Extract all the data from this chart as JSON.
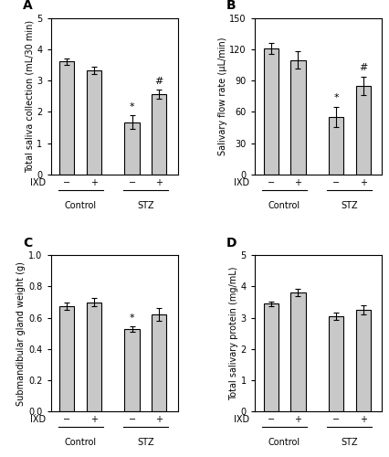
{
  "panels": [
    {
      "label": "A",
      "ylabel": "Total saliva collection (mL/30 min)",
      "ylim": [
        0,
        5
      ],
      "yticks": [
        0,
        1,
        2,
        3,
        4,
        5
      ],
      "values": [
        3.62,
        3.33,
        1.67,
        2.57
      ],
      "errors": [
        0.1,
        0.12,
        0.22,
        0.15
      ],
      "sig_markers": [
        "",
        "",
        "*",
        "#"
      ],
      "has_top_spine": true
    },
    {
      "label": "B",
      "ylabel": "Salivary flow rate (μL/min)",
      "ylim": [
        0,
        150
      ],
      "yticks": [
        0,
        30,
        60,
        90,
        120,
        150
      ],
      "values": [
        121,
        110,
        55,
        85
      ],
      "errors": [
        5,
        8,
        10,
        9
      ],
      "sig_markers": [
        "",
        "",
        "*",
        "#"
      ],
      "has_top_spine": true
    },
    {
      "label": "C",
      "ylabel": "Submandibular gland weight (g)",
      "ylim": [
        0.0,
        1.0
      ],
      "yticks": [
        0.0,
        0.2,
        0.4,
        0.6,
        0.8,
        1.0
      ],
      "values": [
        0.675,
        0.7,
        0.525,
        0.62
      ],
      "errors": [
        0.025,
        0.025,
        0.018,
        0.04
      ],
      "sig_markers": [
        "",
        "",
        "*",
        ""
      ],
      "has_top_spine": true
    },
    {
      "label": "D",
      "ylabel": "Total salivary protein (mg/mL)",
      "ylim": [
        0,
        5
      ],
      "yticks": [
        0,
        1,
        2,
        3,
        4,
        5
      ],
      "values": [
        3.45,
        3.8,
        3.05,
        3.25
      ],
      "errors": [
        0.08,
        0.12,
        0.12,
        0.15
      ],
      "sig_markers": [
        "",
        "",
        "",
        ""
      ],
      "has_top_spine": true
    }
  ],
  "bar_color": "#c8c8c8",
  "bar_edgecolor": "#000000",
  "bar_width": 0.55,
  "group_labels": [
    "Control",
    "STZ"
  ],
  "ixd_labels": [
    "−",
    "+",
    "−",
    "+"
  ],
  "bar_positions": [
    1,
    2,
    3.4,
    4.4
  ],
  "xlim": [
    0.4,
    5.1
  ],
  "ecolor": "#000000",
  "capsize": 2,
  "fontsize_label": 7,
  "fontsize_tick": 7,
  "fontsize_panel": 10,
  "fontsize_sig": 8,
  "background_color": "#ffffff",
  "linewidth": 0.8
}
